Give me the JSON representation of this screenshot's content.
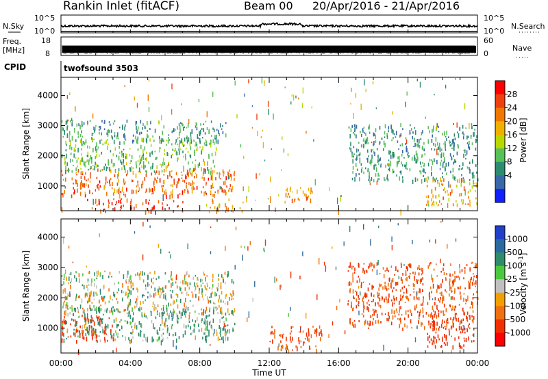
{
  "header": {
    "title": "Rankin Inlet (fitACF)",
    "beam": "Beam 00",
    "date_range": "20/Apr/2016 - 21/Apr/2016"
  },
  "strips": {
    "nsky_label": "N.Sky",
    "nsky_ticks": [
      "10^5",
      "10^0"
    ],
    "nsearch_label": "N.Search",
    "nsearch_ticks": [
      "10^5",
      "10^0"
    ],
    "freq_label": "Freq.",
    "freq_unit": "[MHz]",
    "freq_ticks": [
      "18",
      "8"
    ],
    "nave_label": "Nave",
    "nave_ticks": [
      "60",
      "0"
    ],
    "cpid_label": "CPID",
    "cpid_value": "twofsound 3503"
  },
  "axes": {
    "ylabel": "Slant Range [km]",
    "xlabel": "Time UT",
    "yticks": [
      "1000",
      "2000",
      "3000",
      "4000"
    ],
    "xticks": [
      "00:00",
      "04:00",
      "08:00",
      "12:00",
      "16:00",
      "20:00",
      "00:00"
    ]
  },
  "power_colorbar": {
    "label": "Power [dB]",
    "ticks": [
      "28",
      "24",
      "20",
      "16",
      "12",
      "8",
      "4"
    ],
    "colors": [
      "#ff0000",
      "#f04010",
      "#f07800",
      "#f0b000",
      "#b8d800",
      "#58c058",
      "#2c8c70",
      "#3868a8",
      "#1020ff"
    ]
  },
  "velocity_colorbar": {
    "label": "Velocity [m s^-1]",
    "ticks": [
      "1000",
      "500",
      "100",
      "25",
      "-25",
      "-100",
      "-500",
      "-1000"
    ],
    "colors": [
      "#2040c8",
      "#2a6aa0",
      "#2e8c6a",
      "#4cc840",
      "#c0c0c0",
      "#f0a000",
      "#f07010",
      "#f03000",
      "#ff0000"
    ]
  },
  "chart_data": [
    {
      "type": "heatmap",
      "title": "Power",
      "xlabel": "Time UT",
      "ylabel": "Slant Range [km]",
      "xlim": [
        "00:00",
        "24:00"
      ],
      "ylim": [
        180,
        4600
      ],
      "colorbar_range_db": [
        0,
        30
      ],
      "regions": [
        {
          "t_start": 0.0,
          "t_end": 10.0,
          "r_start": 700,
          "r_end": 1600,
          "value_db": 24
        },
        {
          "t_start": 0.0,
          "t_end": 9.0,
          "r_start": 1500,
          "r_end": 2600,
          "value_db": 12
        },
        {
          "t_start": 0.0,
          "t_end": 9.5,
          "r_start": 2500,
          "r_end": 3200,
          "value_db": 8
        },
        {
          "t_start": 1.5,
          "t_end": 7.0,
          "r_start": 180,
          "r_end": 600,
          "value_db": 26
        },
        {
          "t_start": 8.5,
          "t_end": 10.5,
          "r_start": 180,
          "r_end": 600,
          "value_db": 20
        },
        {
          "t_start": 12.5,
          "t_end": 14.5,
          "r_start": 500,
          "r_end": 1000,
          "value_db": 20
        },
        {
          "t_start": 16.5,
          "t_end": 24.0,
          "r_start": 1200,
          "r_end": 3100,
          "value_db": 8
        },
        {
          "t_start": 21.0,
          "t_end": 24.0,
          "r_start": 400,
          "r_end": 1300,
          "value_db": 20
        }
      ]
    },
    {
      "type": "heatmap",
      "title": "Velocity",
      "xlabel": "Time UT",
      "ylabel": "Slant Range [km]",
      "xlim": [
        "00:00",
        "24:00"
      ],
      "ylim": [
        180,
        4600
      ],
      "colorbar_range_ms": [
        -1000,
        1000
      ],
      "regions": [
        {
          "t_start": 0.0,
          "t_end": 10.0,
          "r_start": 600,
          "r_end": 1700,
          "value_ms": 100
        },
        {
          "t_start": 0.0,
          "t_end": 3.0,
          "r_start": 600,
          "r_end": 1500,
          "value_ms": -500
        },
        {
          "t_start": 0.0,
          "t_end": 10.0,
          "r_start": 1500,
          "r_end": 2900,
          "value_ms": 0
        },
        {
          "t_start": 12.0,
          "t_end": 15.0,
          "r_start": 300,
          "r_end": 1100,
          "value_ms": -300
        },
        {
          "t_start": 16.5,
          "t_end": 24.0,
          "r_start": 1000,
          "r_end": 3200,
          "value_ms": -300
        },
        {
          "t_start": 21.0,
          "t_end": 24.0,
          "r_start": 400,
          "r_end": 1300,
          "value_ms": -500
        }
      ]
    }
  ]
}
